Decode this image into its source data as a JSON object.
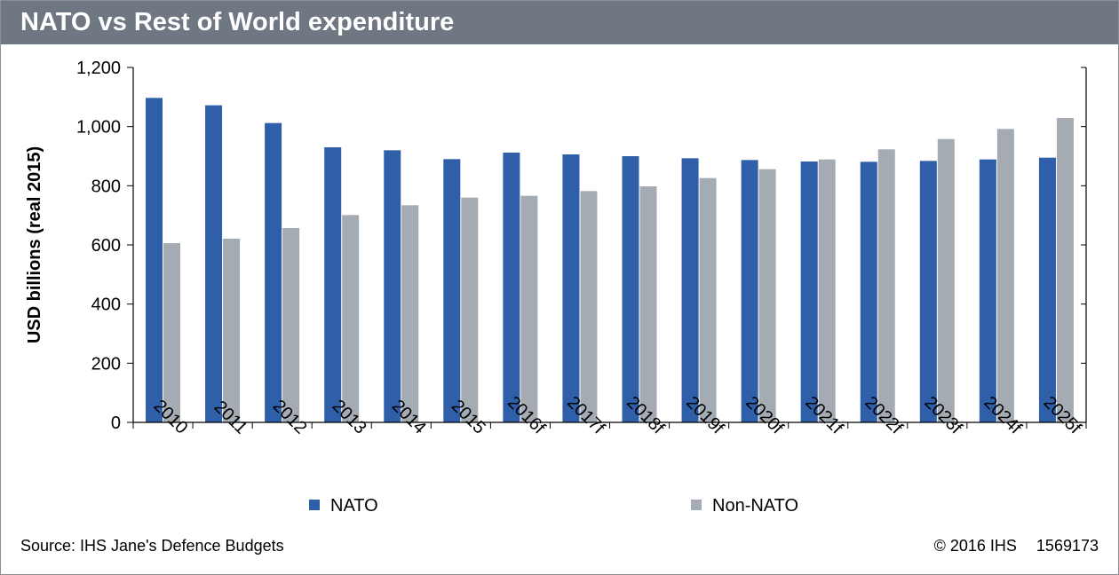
{
  "title": "NATO vs Rest of World expenditure",
  "source": "Source: IHS Jane's Defence Budgets",
  "copyright": "© 2016 IHS",
  "figure_id": "1569173",
  "colors": {
    "nato": "#2e5fa8",
    "non_nato": "#a4abb2",
    "title_bar": "#6f7882"
  },
  "chart_data": {
    "type": "bar",
    "categories": [
      "2010",
      "2011",
      "2012",
      "2013",
      "2014",
      "2015",
      "2016f",
      "2017f",
      "2018f",
      "2019f",
      "2020f",
      "2021f",
      "2022f",
      "2023f",
      "2024f",
      "2025f"
    ],
    "series": [
      {
        "name": "NATO",
        "values": [
          1097,
          1072,
          1012,
          930,
          920,
          890,
          912,
          906,
          900,
          893,
          887,
          882,
          881,
          884,
          889,
          895
        ]
      },
      {
        "name": "Non-NATO",
        "values": [
          606,
          621,
          657,
          701,
          734,
          760,
          766,
          782,
          798,
          826,
          856,
          889,
          923,
          958,
          992,
          1029
        ]
      }
    ],
    "ylabel": "USD billions (real 2015)",
    "xlabel": "",
    "ylim": [
      0,
      1200
    ],
    "yticks": [
      0,
      200,
      400,
      600,
      800,
      1000,
      1200
    ],
    "ytick_labels": [
      "0",
      "200",
      "400",
      "600",
      "800",
      "1,000",
      "1,200"
    ],
    "grid": false,
    "legend": "bottom"
  }
}
